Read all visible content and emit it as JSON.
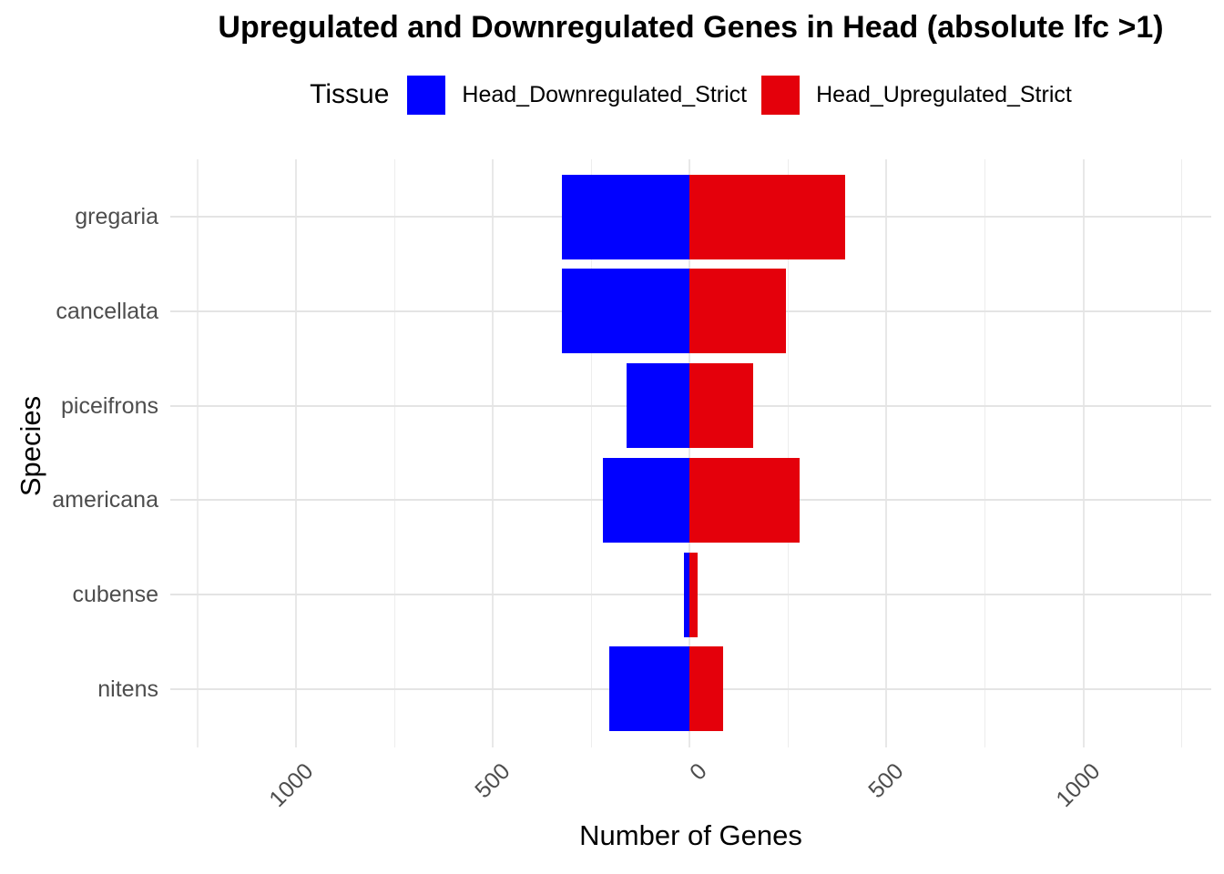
{
  "title": "Upregulated and Downregulated Genes in Head (absolute lfc >1)",
  "legend": {
    "title": "Tissue",
    "position": "top",
    "items": [
      {
        "label": "Head_Downregulated_Strict",
        "color": "#0101FF"
      },
      {
        "label": "Head_Upregulated_Strict",
        "color": "#E4000B"
      }
    ]
  },
  "chart_data": {
    "type": "bar",
    "subtype": "horizontal-diverging",
    "title": "Upregulated and Downregulated Genes in Head (absolute lfc >1)",
    "xlabel": "Number of Genes",
    "ylabel": "Species",
    "categories": [
      "gregaria",
      "cancellata",
      "piceifrons",
      "americana",
      "cubense",
      "nitens"
    ],
    "series": [
      {
        "name": "Head_Downregulated_Strict",
        "side": "negative",
        "color": "#0101FF",
        "values": [
          325,
          325,
          160,
          220,
          15,
          205
        ]
      },
      {
        "name": "Head_Upregulated_Strict",
        "side": "positive",
        "color": "#E4000B",
        "values": [
          395,
          245,
          160,
          280,
          20,
          85
        ]
      }
    ],
    "xlim": [
      -1320,
      1325
    ],
    "x_major_ticks": [
      -1000,
      -500,
      0,
      500,
      1000
    ],
    "x_tick_labels": [
      "1000",
      "500",
      "0",
      "500",
      "1000"
    ],
    "x_minor_ticks": [
      -1250,
      -750,
      -250,
      250,
      750,
      1250
    ],
    "grid": true,
    "legend_position": "top",
    "bar_width_fraction": 0.9,
    "colors": {
      "grid_major": "#E4E4E4",
      "grid_minor": "#EDEDED",
      "axis_text": "#4D4D4D",
      "text": "#000000",
      "background": "#FFFFFF"
    }
  }
}
